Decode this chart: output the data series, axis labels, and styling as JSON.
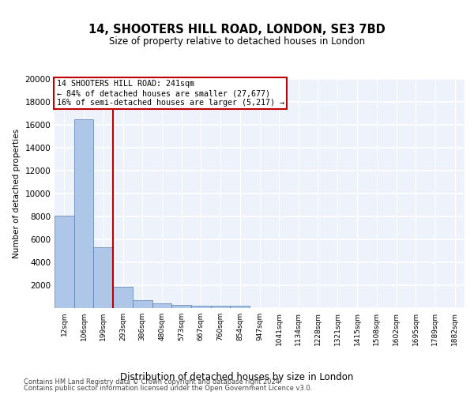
{
  "title": "14, SHOOTERS HILL ROAD, LONDON, SE3 7BD",
  "subtitle": "Size of property relative to detached houses in London",
  "xlabel": "Distribution of detached houses by size in London",
  "ylabel": "Number of detached properties",
  "categories": [
    "12sqm",
    "106sqm",
    "199sqm",
    "293sqm",
    "386sqm",
    "480sqm",
    "573sqm",
    "667sqm",
    "760sqm",
    "854sqm",
    "947sqm",
    "1041sqm",
    "1134sqm",
    "1228sqm",
    "1321sqm",
    "1415sqm",
    "1508sqm",
    "1602sqm",
    "1695sqm",
    "1789sqm",
    "1882sqm"
  ],
  "values": [
    8100,
    16500,
    5300,
    1850,
    700,
    380,
    290,
    230,
    180,
    200,
    0,
    0,
    0,
    0,
    0,
    0,
    0,
    0,
    0,
    0,
    0
  ],
  "bar_color": "#aec6e8",
  "bar_edge_color": "#5580b0",
  "vline_color": "#c00000",
  "annotation_text": "14 SHOOTERS HILL ROAD: 241sqm\n← 84% of detached houses are smaller (27,677)\n16% of semi-detached houses are larger (5,217) →",
  "annotation_box_color": "#c00000",
  "ylim": [
    0,
    20000
  ],
  "yticks": [
    0,
    2000,
    4000,
    6000,
    8000,
    10000,
    12000,
    14000,
    16000,
    18000,
    20000
  ],
  "background_color": "#eef2fb",
  "footer_line1": "Contains HM Land Registry data © Crown copyright and database right 2024.",
  "footer_line2": "Contains public sector information licensed under the Open Government Licence v3.0."
}
